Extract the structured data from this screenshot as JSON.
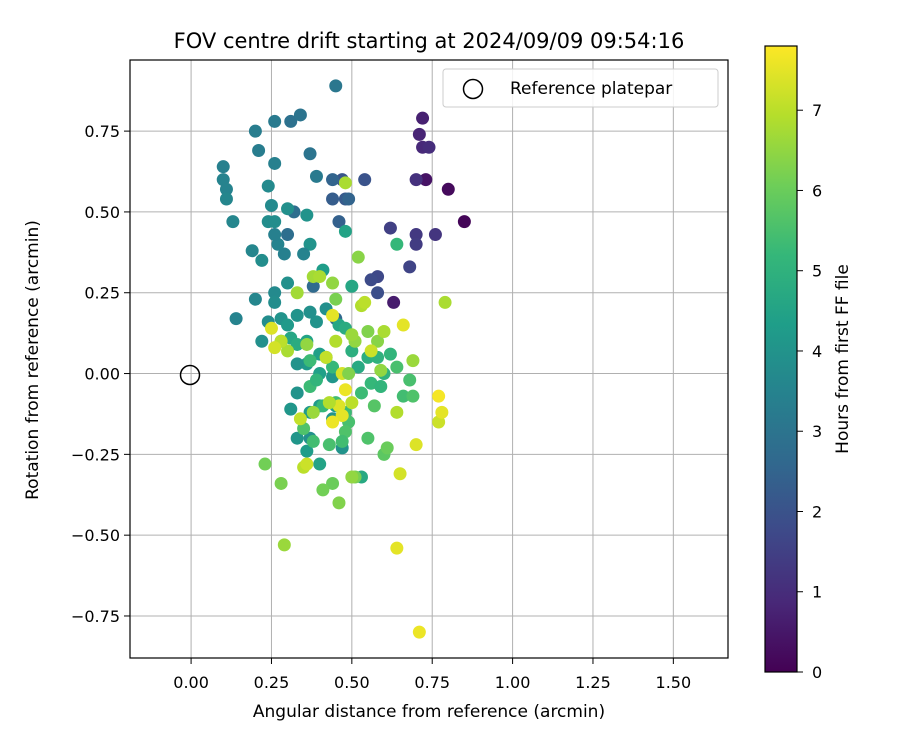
{
  "chart_data": {
    "type": "scatter",
    "title": "FOV centre drift starting at 2024/09/09 09:54:16",
    "xlabel": "Angular distance from reference (arcmin)",
    "ylabel": "Rotation from reference (arcmin)",
    "xlim": [
      -0.19,
      1.67
    ],
    "ylim": [
      -0.88,
      0.97
    ],
    "x_ticks": [
      "0.00",
      "0.25",
      "0.50",
      "0.75",
      "1.00",
      "1.25",
      "1.50"
    ],
    "y_ticks": [
      "−0.75",
      "−0.50",
      "−0.25",
      "0.00",
      "0.25",
      "0.50",
      "0.75"
    ],
    "grid": true,
    "legend": {
      "entries": [
        "Reference platepar"
      ],
      "placement": "top-right"
    },
    "reference_point": {
      "name": "Reference platepar",
      "x": 0.0,
      "y": 0.0,
      "marker": "open-circle"
    },
    "colorbar": {
      "label": "Hours from first FF file",
      "min": 0,
      "max": 7.8,
      "ticks": [
        "0",
        "1",
        "2",
        "3",
        "4",
        "5",
        "6",
        "7"
      ],
      "colormap": "viridis"
    },
    "colormap_colors": [
      "#440154",
      "#482878",
      "#3e4989",
      "#31688e",
      "#26828e",
      "#1f9e89",
      "#35b779",
      "#6ece58",
      "#b5de2b",
      "#fde725"
    ],
    "series": [
      {
        "points": [
          [
            0.85,
            0.47,
            0.1
          ],
          [
            0.8,
            0.57,
            0.2
          ],
          [
            0.73,
            0.6,
            0.4
          ],
          [
            0.63,
            0.22,
            0.6
          ],
          [
            0.72,
            0.79,
            0.7
          ],
          [
            0.71,
            0.74,
            0.8
          ],
          [
            0.72,
            0.7,
            0.9
          ],
          [
            0.74,
            0.7,
            1.0
          ],
          [
            0.7,
            0.6,
            1.1
          ],
          [
            0.76,
            0.43,
            1.2
          ],
          [
            0.7,
            0.43,
            1.3
          ],
          [
            0.7,
            0.4,
            1.4
          ],
          [
            0.62,
            0.45,
            1.5
          ],
          [
            0.68,
            0.33,
            1.6
          ],
          [
            0.58,
            0.3,
            1.7
          ],
          [
            0.56,
            0.29,
            1.8
          ],
          [
            0.58,
            0.25,
            1.9
          ],
          [
            0.54,
            0.6,
            2.0
          ],
          [
            0.47,
            0.6,
            2.1
          ],
          [
            0.48,
            0.54,
            2.2
          ],
          [
            0.44,
            0.54,
            2.3
          ],
          [
            0.46,
            0.47,
            2.4
          ],
          [
            0.44,
            0.6,
            2.5
          ],
          [
            0.49,
            0.54,
            2.5
          ],
          [
            0.45,
            0.17,
            2.6
          ],
          [
            0.38,
            0.27,
            2.7
          ],
          [
            0.3,
            0.43,
            2.8
          ],
          [
            0.32,
            0.5,
            2.8
          ],
          [
            0.31,
            0.78,
            2.9
          ],
          [
            0.37,
            0.68,
            3.0
          ],
          [
            0.34,
            0.8,
            3.0
          ],
          [
            0.45,
            0.89,
            3.1
          ],
          [
            0.39,
            0.61,
            3.2
          ],
          [
            0.26,
            0.78,
            3.2
          ],
          [
            0.2,
            0.75,
            3.3
          ],
          [
            0.21,
            0.69,
            3.3
          ],
          [
            0.26,
            0.65,
            3.4
          ],
          [
            0.1,
            0.64,
            3.4
          ],
          [
            0.1,
            0.6,
            3.5
          ],
          [
            0.11,
            0.57,
            3.5
          ],
          [
            0.11,
            0.54,
            3.6
          ],
          [
            0.13,
            0.47,
            3.6
          ],
          [
            0.24,
            0.58,
            3.7
          ],
          [
            0.25,
            0.52,
            3.7
          ],
          [
            0.24,
            0.47,
            3.8
          ],
          [
            0.26,
            0.47,
            3.8
          ],
          [
            0.3,
            0.51,
            3.9
          ],
          [
            0.36,
            0.49,
            4.0
          ],
          [
            0.37,
            0.4,
            4.0
          ],
          [
            0.35,
            0.37,
            3.5
          ],
          [
            0.29,
            0.37,
            3.4
          ],
          [
            0.27,
            0.4,
            3.5
          ],
          [
            0.26,
            0.43,
            3.4
          ],
          [
            0.19,
            0.38,
            3.6
          ],
          [
            0.22,
            0.35,
            3.8
          ],
          [
            0.2,
            0.23,
            3.6
          ],
          [
            0.26,
            0.25,
            3.7
          ],
          [
            0.26,
            0.22,
            3.8
          ],
          [
            0.3,
            0.28,
            3.9
          ],
          [
            0.14,
            0.17,
            3.5
          ],
          [
            0.24,
            0.16,
            3.8
          ],
          [
            0.28,
            0.17,
            4.0
          ],
          [
            0.22,
            0.1,
            3.9
          ],
          [
            0.28,
            0.1,
            4.1
          ],
          [
            0.3,
            0.15,
            4.2
          ],
          [
            0.33,
            0.18,
            4.0
          ],
          [
            0.31,
            -0.11,
            4.1
          ],
          [
            0.33,
            -0.06,
            4.0
          ],
          [
            0.37,
            -0.12,
            4.2
          ],
          [
            0.33,
            -0.2,
            4.1
          ],
          [
            0.37,
            -0.2,
            3.9
          ],
          [
            0.36,
            -0.24,
            4.3
          ],
          [
            0.4,
            -0.28,
            4.5
          ],
          [
            0.4,
            -0.1,
            4.2
          ],
          [
            0.44,
            -0.14,
            4.0
          ],
          [
            0.45,
            -0.1,
            4.3
          ],
          [
            0.44,
            -0.01,
            4.1
          ],
          [
            0.4,
            0.0,
            4.4
          ],
          [
            0.36,
            0.03,
            4.2
          ],
          [
            0.33,
            0.03,
            4.0
          ],
          [
            0.41,
            0.32,
            4.3
          ],
          [
            0.48,
            0.44,
            4.5
          ],
          [
            0.5,
            0.27,
            4.6
          ],
          [
            0.47,
            -0.23,
            4.0
          ],
          [
            0.53,
            -0.32,
            4.7
          ],
          [
            0.42,
            0.2,
            3.9
          ],
          [
            0.39,
            0.16,
            4.0
          ],
          [
            0.37,
            0.19,
            3.9
          ],
          [
            0.4,
            0.06,
            4.4
          ],
          [
            0.36,
            0.1,
            4.5
          ],
          [
            0.31,
            0.11,
            4.6
          ],
          [
            0.33,
            0.09,
            4.8
          ],
          [
            0.46,
            0.15,
            4.6
          ],
          [
            0.48,
            0.14,
            4.8
          ],
          [
            0.5,
            0.07,
            4.9
          ],
          [
            0.52,
            0.02,
            4.7
          ],
          [
            0.55,
            0.05,
            4.9
          ],
          [
            0.58,
            0.05,
            5.0
          ],
          [
            0.62,
            0.06,
            5.1
          ],
          [
            0.6,
            0.0,
            5.0
          ],
          [
            0.56,
            -0.03,
            5.2
          ],
          [
            0.59,
            -0.04,
            5.1
          ],
          [
            0.53,
            -0.06,
            5.3
          ],
          [
            0.44,
            0.02,
            5.2
          ],
          [
            0.42,
            0.05,
            5.0
          ],
          [
            0.37,
            0.04,
            5.3
          ],
          [
            0.37,
            -0.04,
            5.3
          ],
          [
            0.39,
            -0.02,
            5.1
          ],
          [
            0.41,
            -0.1,
            5.2
          ],
          [
            0.45,
            -0.09,
            5.4
          ],
          [
            0.48,
            -0.12,
            5.3
          ],
          [
            0.49,
            -0.15,
            5.5
          ],
          [
            0.48,
            -0.18,
            5.6
          ],
          [
            0.47,
            -0.21,
            5.4
          ],
          [
            0.43,
            -0.22,
            5.5
          ],
          [
            0.38,
            -0.21,
            5.4
          ],
          [
            0.35,
            -0.17,
            5.6
          ],
          [
            0.64,
            0.4,
            5.2
          ],
          [
            0.66,
            -0.07,
            5.4
          ],
          [
            0.68,
            -0.02,
            5.5
          ],
          [
            0.69,
            -0.07,
            5.6
          ],
          [
            0.64,
            0.02,
            5.5
          ],
          [
            0.57,
            -0.1,
            5.7
          ],
          [
            0.55,
            -0.2,
            5.6
          ],
          [
            0.6,
            -0.25,
            5.8
          ],
          [
            0.61,
            -0.23,
            6.0
          ],
          [
            0.51,
            -0.32,
            6.2
          ],
          [
            0.44,
            -0.34,
            6.0
          ],
          [
            0.46,
            -0.4,
            6.3
          ],
          [
            0.41,
            -0.36,
            6.1
          ],
          [
            0.28,
            -0.34,
            6.2
          ],
          [
            0.23,
            -0.28,
            6.1
          ],
          [
            0.29,
            -0.53,
            6.6
          ],
          [
            0.35,
            -0.29,
            7.0
          ],
          [
            0.36,
            -0.28,
            7.2
          ],
          [
            0.64,
            -0.54,
            7.5
          ],
          [
            0.65,
            -0.31,
            7.3
          ],
          [
            0.7,
            -0.22,
            7.4
          ],
          [
            0.71,
            -0.8,
            7.6
          ],
          [
            0.77,
            -0.15,
            7.2
          ],
          [
            0.78,
            -0.12,
            7.5
          ],
          [
            0.77,
            -0.07,
            7.7
          ],
          [
            0.79,
            0.22,
            6.8
          ],
          [
            0.69,
            0.04,
            6.6
          ],
          [
            0.66,
            0.15,
            7.5
          ],
          [
            0.64,
            -0.12,
            6.9
          ],
          [
            0.58,
            0.1,
            6.4
          ],
          [
            0.6,
            0.13,
            6.8
          ],
          [
            0.59,
            0.01,
            6.5
          ],
          [
            0.56,
            0.07,
            7.2
          ],
          [
            0.55,
            0.13,
            6.3
          ],
          [
            0.52,
            0.36,
            6.4
          ],
          [
            0.53,
            0.21,
            6.9
          ],
          [
            0.54,
            0.22,
            7.0
          ],
          [
            0.51,
            0.1,
            6.5
          ],
          [
            0.48,
            0.59,
            6.8
          ],
          [
            0.45,
            0.23,
            6.2
          ],
          [
            0.44,
            0.28,
            6.5
          ],
          [
            0.38,
            0.3,
            6.7
          ],
          [
            0.4,
            0.3,
            6.8
          ],
          [
            0.42,
            0.05,
            7.1
          ],
          [
            0.44,
            0.18,
            7.5
          ],
          [
            0.45,
            0.1,
            6.9
          ],
          [
            0.5,
            0.12,
            6.6
          ],
          [
            0.47,
            0.0,
            7.3
          ],
          [
            0.48,
            -0.05,
            7.6
          ],
          [
            0.46,
            -0.1,
            7.4
          ],
          [
            0.47,
            -0.13,
            7.5
          ],
          [
            0.44,
            -0.15,
            7.6
          ],
          [
            0.5,
            -0.09,
            7.0
          ],
          [
            0.43,
            -0.09,
            6.9
          ],
          [
            0.38,
            -0.12,
            6.6
          ],
          [
            0.34,
            -0.14,
            7.1
          ],
          [
            0.3,
            0.07,
            6.8
          ],
          [
            0.28,
            0.1,
            7.0
          ],
          [
            0.26,
            0.08,
            7.3
          ],
          [
            0.25,
            0.14,
            7.4
          ],
          [
            0.33,
            0.25,
            6.7
          ],
          [
            0.36,
            0.09,
            6.5
          ],
          [
            0.49,
            0.0,
            6.3
          ],
          [
            0.5,
            -0.32,
            6.5
          ]
        ]
      }
    ]
  }
}
